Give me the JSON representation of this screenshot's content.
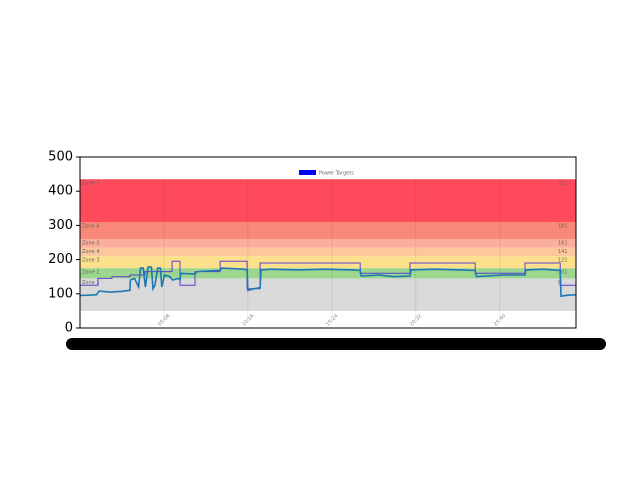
{
  "chart_data": {
    "type": "line",
    "legend_label": "Power Targets",
    "legend_color": "#0000ff",
    "ylim": [
      0,
      500
    ],
    "yticks": [
      0,
      100,
      200,
      300,
      400,
      500
    ],
    "xlim": [
      0,
      1820
    ],
    "inner_xticks": [
      {
        "value": 308,
        "label": "05:08"
      },
      {
        "value": 616,
        "label": "10:16"
      },
      {
        "value": 924,
        "label": "15:24"
      },
      {
        "value": 1232,
        "label": "20:32"
      },
      {
        "value": 1540,
        "label": "25:40"
      }
    ],
    "zones": [
      {
        "name": "Zone 1",
        "value_label": "0",
        "range": [
          50,
          145
        ],
        "color": "#d9d9d9"
      },
      {
        "name": "Zone 2",
        "value_label": "101",
        "range": [
          145,
          175
        ],
        "color": "#9dd68e"
      },
      {
        "name": "Zone 3",
        "value_label": "121",
        "range": [
          175,
          210
        ],
        "color": "#fde08c"
      },
      {
        "name": "Zone 4",
        "value_label": "141",
        "range": [
          210,
          235
        ],
        "color": "#fcc79c"
      },
      {
        "name": "Zone 5",
        "value_label": "161",
        "range": [
          235,
          260
        ],
        "color": "#fcae9c"
      },
      {
        "name": "Zone 6",
        "value_label": "181",
        "range": [
          260,
          310
        ],
        "color": "#fa8878"
      },
      {
        "name": "Zone 7",
        "value_label": "201",
        "range": [
          310,
          435
        ],
        "color": "#ff4a5c"
      }
    ],
    "series": [
      {
        "name": "Target",
        "color": "#5a3fd0",
        "x": [
          0,
          66,
          66,
          117,
          117,
          183,
          183,
          238,
          238,
          338,
          338,
          367,
          367,
          422,
          422,
          514,
          514,
          613,
          613,
          661,
          661,
          1028,
          1028,
          1211,
          1211,
          1450,
          1450,
          1633,
          1633,
          1762,
          1762,
          1820
        ],
        "values": [
          125,
          125,
          145,
          145,
          150,
          150,
          155,
          155,
          165,
          165,
          195,
          195,
          125,
          125,
          165,
          165,
          195,
          195,
          115,
          115,
          190,
          190,
          160,
          160,
          190,
          190,
          160,
          160,
          190,
          190,
          125,
          125
        ]
      },
      {
        "name": "Power",
        "color": "#1f77b4",
        "x": [
          0,
          60,
          70,
          110,
          150,
          183,
          185,
          200,
          215,
          222,
          232,
          240,
          250,
          262,
          268,
          275,
          285,
          295,
          300,
          310,
          330,
          340,
          360,
          367,
          370,
          420,
          430,
          500,
          514,
          520,
          600,
          613,
          616,
          640,
          661,
          664,
          700,
          800,
          900,
          1000,
          1028,
          1032,
          1100,
          1150,
          1211,
          1215,
          1300,
          1400,
          1450,
          1455,
          1550,
          1633,
          1636,
          1700,
          1762,
          1765,
          1790,
          1820
        ],
        "values": [
          95,
          97,
          108,
          105,
          107,
          110,
          140,
          145,
          120,
          175,
          175,
          120,
          178,
          178,
          115,
          125,
          175,
          175,
          120,
          155,
          150,
          140,
          145,
          140,
          160,
          158,
          165,
          168,
          168,
          175,
          172,
          170,
          110,
          115,
          118,
          170,
          172,
          170,
          172,
          170,
          168,
          152,
          155,
          150,
          152,
          170,
          172,
          170,
          168,
          150,
          155,
          155,
          170,
          172,
          168,
          93,
          96,
          97
        ]
      }
    ]
  }
}
